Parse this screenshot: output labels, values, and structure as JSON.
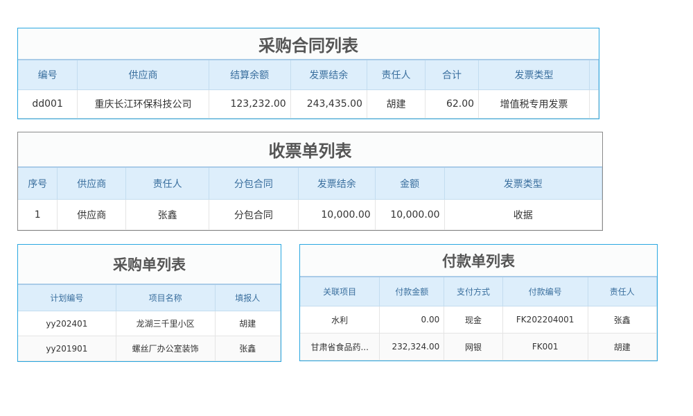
{
  "tables": [
    {
      "id": "purchase-contract-list",
      "title": "采购合同列表",
      "headers": [
        "编号",
        "供应商",
        "结算余额",
        "发票结余",
        "责任人",
        "合计",
        "发票类型"
      ],
      "rows": [
        [
          "dd001",
          "重庆长江环保科技公司",
          "123,232.00",
          "243,435.00",
          "胡建",
          "62.00",
          "增值税专用发票"
        ]
      ]
    },
    {
      "id": "invoice-receipt-list",
      "title": "收票单列表",
      "headers": [
        "序号",
        "供应商",
        "责任人",
        "分包合同",
        "发票结余",
        "金额",
        "发票类型"
      ],
      "rows": [
        [
          "1",
          "供应商",
          "张鑫",
          "分包合同",
          "10,000.00",
          "10,000.00",
          "收据"
        ]
      ]
    },
    {
      "id": "purchase-order-list",
      "title": "采购单列表",
      "headers": [
        "计划编号",
        "项目名称",
        "填报人"
      ],
      "rows": [
        [
          "yy202401",
          "龙湖三千里小区",
          "胡建"
        ],
        [
          "yy201901",
          "螺丝厂办公室装饰",
          "张鑫"
        ]
      ]
    },
    {
      "id": "payment-list",
      "title": "付款单列表",
      "headers": [
        "关联项目",
        "付款金额",
        "支付方式",
        "付款编号",
        "责任人"
      ],
      "rows": [
        [
          "水利",
          "0.00",
          "现金",
          "FK202204001",
          "张鑫"
        ],
        [
          "甘肃省食品药...",
          "232,324.00",
          "网银",
          "FK001",
          "胡建"
        ]
      ]
    }
  ]
}
